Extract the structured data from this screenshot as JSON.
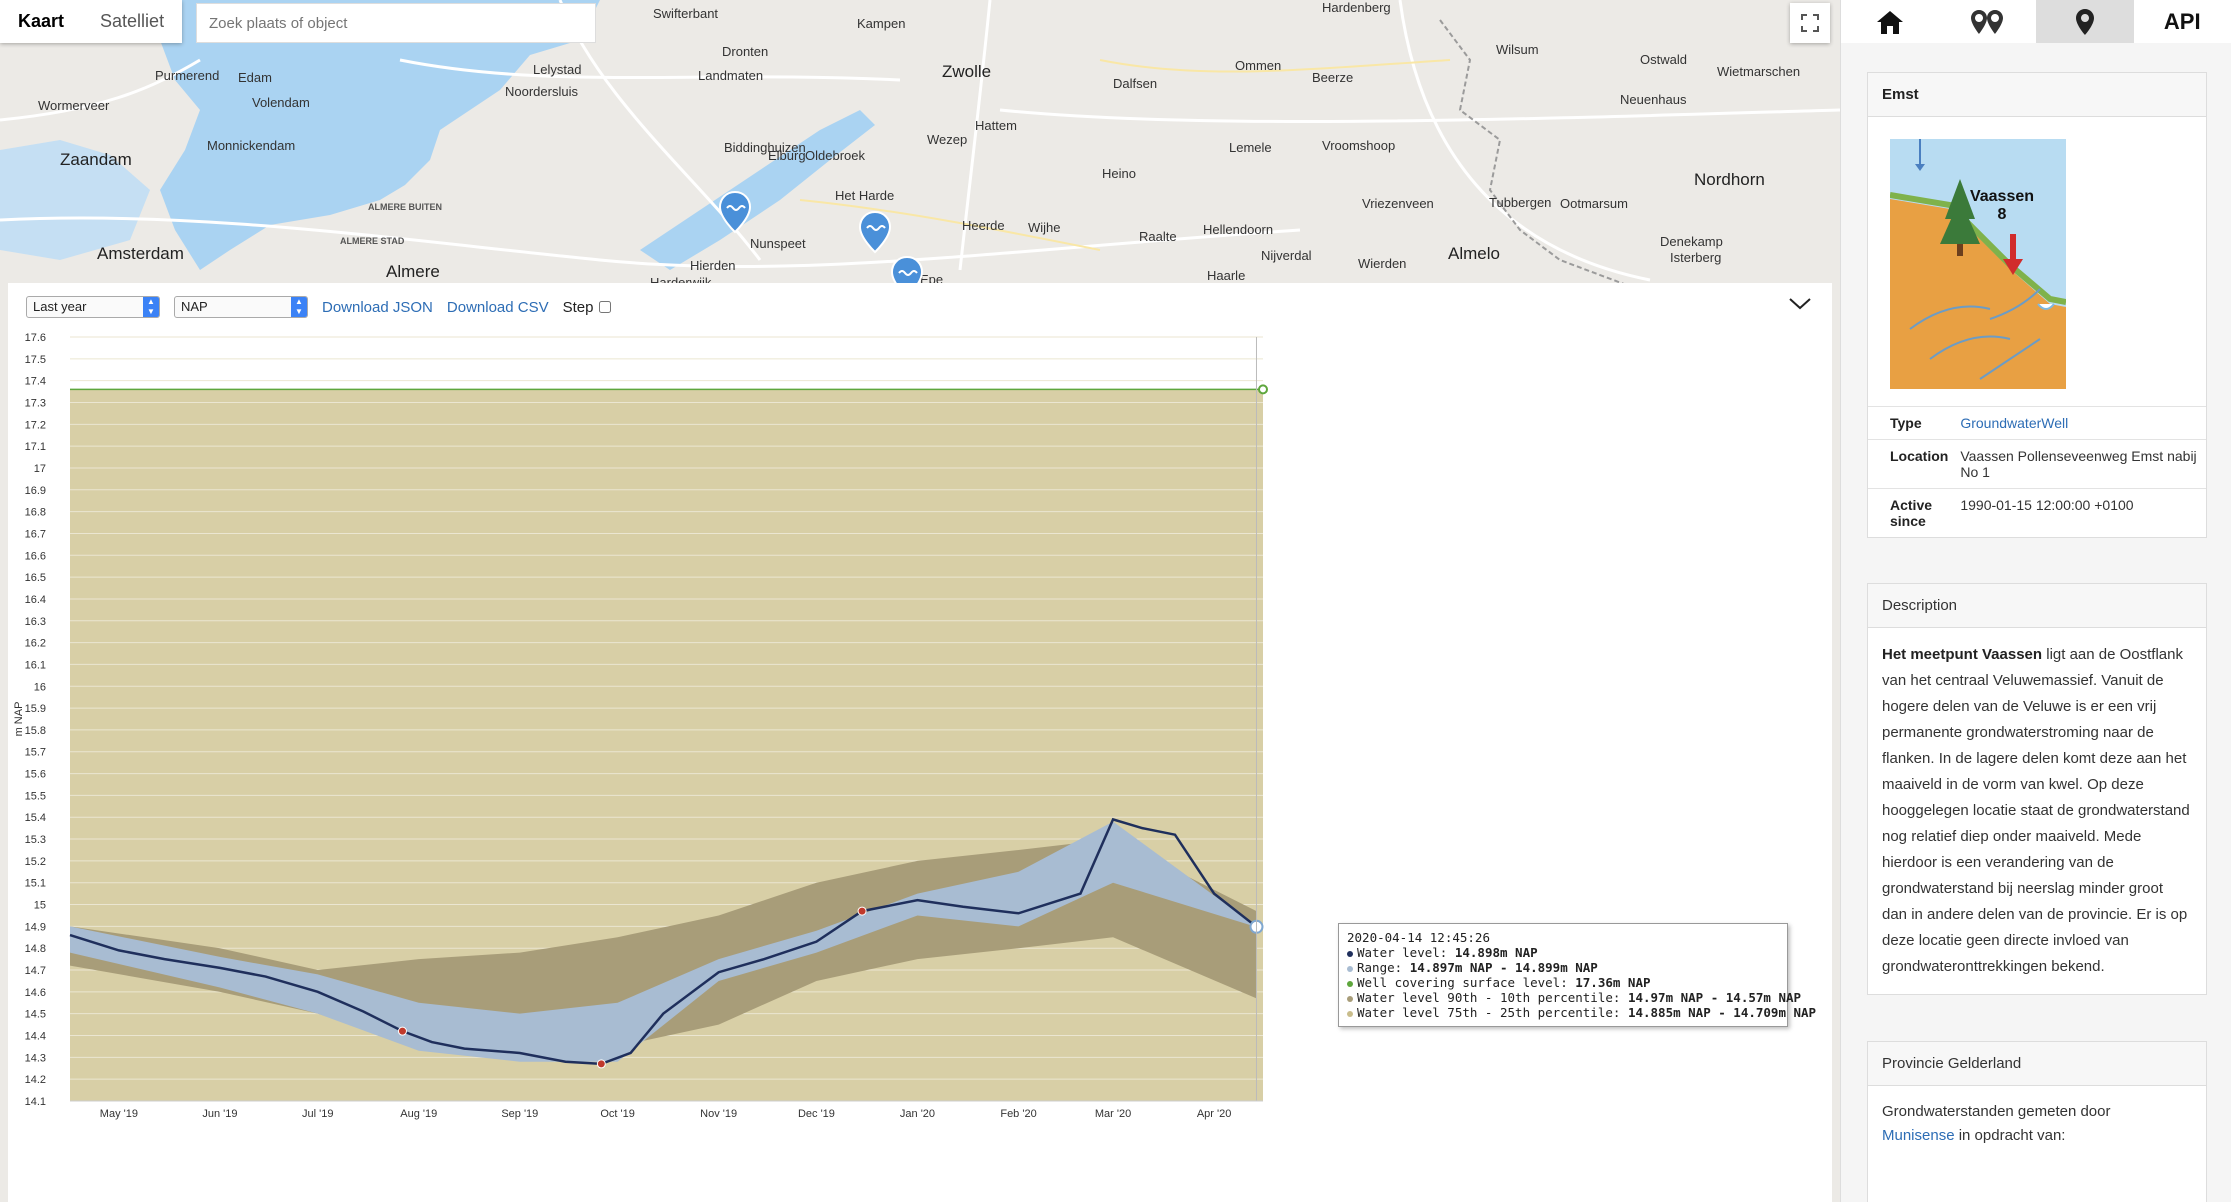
{
  "map": {
    "tabs": [
      {
        "label": "Kaart",
        "active": true
      },
      {
        "label": "Satelliet",
        "active": false
      }
    ],
    "search_placeholder": "Zoek plaats of object",
    "places": [
      {
        "name": "Swifterbant",
        "kind": "normal"
      },
      {
        "name": "Kampen",
        "kind": "normal"
      },
      {
        "name": "Hardenberg",
        "kind": "normal"
      },
      {
        "name": "Purmerend",
        "kind": "normal"
      },
      {
        "name": "Edam",
        "kind": "normal"
      },
      {
        "name": "Volendam",
        "kind": "normal"
      },
      {
        "name": "Lelystad",
        "kind": "normal"
      },
      {
        "name": "Noordersluis",
        "kind": "normal"
      },
      {
        "name": "Dronten",
        "kind": "normal"
      },
      {
        "name": "Landmaten",
        "kind": "normal"
      },
      {
        "name": "Zwolle",
        "kind": "big"
      },
      {
        "name": "Dalfsen",
        "kind": "normal"
      },
      {
        "name": "Ommen",
        "kind": "normal"
      },
      {
        "name": "Beerze",
        "kind": "normal"
      },
      {
        "name": "Wilsum",
        "kind": "normal"
      },
      {
        "name": "Ostwald",
        "kind": "normal"
      },
      {
        "name": "Wietmarschen",
        "kind": "normal"
      },
      {
        "name": "Wormerveer",
        "kind": "normal"
      },
      {
        "name": "Monnickendam",
        "kind": "normal"
      },
      {
        "name": "Neuenhaus",
        "kind": "normal"
      },
      {
        "name": "Zaandam",
        "kind": "big"
      },
      {
        "name": "Biddinghuizen",
        "kind": "normal"
      },
      {
        "name": "Elburg",
        "kind": "normal"
      },
      {
        "name": "Oldebroek",
        "kind": "normal"
      },
      {
        "name": "Wezep",
        "kind": "normal"
      },
      {
        "name": "Hattem",
        "kind": "normal"
      },
      {
        "name": "Lemele",
        "kind": "normal"
      },
      {
        "name": "Vroomshoop",
        "kind": "normal"
      },
      {
        "name": "Heino",
        "kind": "normal"
      },
      {
        "name": "Het Harde",
        "kind": "normal"
      },
      {
        "name": "Nordhorn",
        "kind": "big"
      },
      {
        "name": "ALMERE BUITEN",
        "kind": "small"
      },
      {
        "name": "Amsterdam",
        "kind": "big"
      },
      {
        "name": "ALMERE STAD",
        "kind": "small"
      },
      {
        "name": "Nunspeet",
        "kind": "normal"
      },
      {
        "name": "Heerde",
        "kind": "normal"
      },
      {
        "name": "Wijhe",
        "kind": "normal"
      },
      {
        "name": "Hellendoorn",
        "kind": "normal"
      },
      {
        "name": "Vriezenveen",
        "kind": "normal"
      },
      {
        "name": "Tubbergen",
        "kind": "normal"
      },
      {
        "name": "Ootmarsum",
        "kind": "normal"
      },
      {
        "name": "Raalte",
        "kind": "normal"
      },
      {
        "name": "Nijverdal",
        "kind": "normal"
      },
      {
        "name": "Denekamp",
        "kind": "normal"
      },
      {
        "name": "Almelo",
        "kind": "big"
      },
      {
        "name": "Hierden",
        "kind": "normal"
      },
      {
        "name": "Wierden",
        "kind": "normal"
      },
      {
        "name": "Almere",
        "kind": "big"
      },
      {
        "name": "Harderwijk",
        "kind": "normal"
      },
      {
        "name": "Epe",
        "kind": "normal"
      },
      {
        "name": "Haarle",
        "kind": "normal"
      },
      {
        "name": "Isterberg",
        "kind": "normal"
      }
    ]
  },
  "chart_panel": {
    "period_select": "Last year",
    "unit_select": "NAP",
    "download_json": "Download JSON",
    "download_csv": "Download CSV",
    "step_label": "Step"
  },
  "chart_data": {
    "type": "line",
    "ylabel": "m NAP",
    "ylim": [
      14.1,
      17.6
    ],
    "yticks": [
      17.6,
      17.5,
      17.4,
      17.3,
      17.2,
      17.1,
      17,
      16.9,
      16.8,
      16.7,
      16.6,
      16.5,
      16.4,
      16.3,
      16.2,
      16.1,
      16,
      15.9,
      15.8,
      15.7,
      15.6,
      15.5,
      15.4,
      15.3,
      15.2,
      15.1,
      15,
      14.9,
      14.8,
      14.7,
      14.6,
      14.5,
      14.4,
      14.3,
      14.2,
      14.1
    ],
    "xticks": [
      "May '19",
      "Jun '19",
      "Jul '19",
      "Aug '19",
      "Sep '19",
      "Oct '19",
      "Nov '19",
      "Dec '19",
      "Jan '20",
      "Feb '20",
      "Mar '20",
      "Apr '20"
    ],
    "xlim": [
      "2019-04-16",
      "2020-04-16"
    ],
    "well_covering_surface_level": 17.36,
    "water_level": [
      [
        "2019-04-16",
        14.86
      ],
      [
        "2019-05-01",
        14.79
      ],
      [
        "2019-05-15",
        14.75
      ],
      [
        "2019-06-01",
        14.71
      ],
      [
        "2019-06-15",
        14.67
      ],
      [
        "2019-07-01",
        14.6
      ],
      [
        "2019-07-15",
        14.51
      ],
      [
        "2019-07-27",
        14.42
      ],
      [
        "2019-08-05",
        14.37
      ],
      [
        "2019-08-15",
        14.34
      ],
      [
        "2019-09-01",
        14.32
      ],
      [
        "2019-09-15",
        14.28
      ],
      [
        "2019-09-26",
        14.27
      ],
      [
        "2019-10-05",
        14.32
      ],
      [
        "2019-10-15",
        14.5
      ],
      [
        "2019-11-01",
        14.69
      ],
      [
        "2019-11-15",
        14.75
      ],
      [
        "2019-12-01",
        14.83
      ],
      [
        "2019-12-15",
        14.97
      ],
      [
        "2020-01-01",
        15.02
      ],
      [
        "2020-01-15",
        14.99
      ],
      [
        "2020-02-01",
        14.96
      ],
      [
        "2020-02-20",
        15.05
      ],
      [
        "2020-03-01",
        15.39
      ],
      [
        "2020-03-10",
        15.35
      ],
      [
        "2020-03-20",
        15.32
      ],
      [
        "2020-04-01",
        15.05
      ],
      [
        "2020-04-14",
        14.898
      ]
    ],
    "range_band": [
      [
        "2019-04-16",
        14.9,
        14.78
      ],
      [
        "2019-06-01",
        14.76,
        14.62
      ],
      [
        "2019-07-01",
        14.68,
        14.5
      ],
      [
        "2019-08-01",
        14.55,
        14.33
      ],
      [
        "2019-09-01",
        14.5,
        14.28
      ],
      [
        "2019-10-01",
        14.55,
        14.28
      ],
      [
        "2019-11-01",
        14.75,
        14.65
      ],
      [
        "2019-12-01",
        14.88,
        14.78
      ],
      [
        "2020-01-01",
        15.05,
        14.95
      ],
      [
        "2020-02-01",
        15.15,
        14.9
      ],
      [
        "2020-03-01",
        15.38,
        15.1
      ],
      [
        "2020-04-14",
        14.899,
        14.897
      ]
    ],
    "percentile_band": [
      [
        "2019-04-16",
        14.9,
        14.72
      ],
      [
        "2019-06-01",
        14.8,
        14.6
      ],
      [
        "2019-07-01",
        14.7,
        14.5
      ],
      [
        "2019-08-01",
        14.75,
        14.35
      ],
      [
        "2019-09-01",
        14.78,
        14.32
      ],
      [
        "2019-10-01",
        14.85,
        14.35
      ],
      [
        "2019-11-01",
        14.95,
        14.45
      ],
      [
        "2019-12-01",
        15.1,
        14.65
      ],
      [
        "2020-01-01",
        15.2,
        14.75
      ],
      [
        "2020-02-01",
        15.25,
        14.8
      ],
      [
        "2020-03-01",
        15.3,
        14.85
      ],
      [
        "2020-04-14",
        14.97,
        14.57
      ]
    ],
    "series_colors": {
      "water_level": "#1f2f5c",
      "range": "#a8bcd2",
      "percentile": "#a89d79",
      "background": "#d8cfa6",
      "surface": "#5ea63c",
      "marker": "#c0392b"
    },
    "tooltip": {
      "date": "2020-04-14 12:45:26",
      "rows": [
        {
          "label": "Water level:",
          "value": "14.898m NAP",
          "color": "#1f2f5c"
        },
        {
          "label": "Range:",
          "value": "14.897m NAP - 14.899m NAP",
          "color": "#a8bcd2"
        },
        {
          "label": "Well covering surface level:",
          "value": "17.36m NAP",
          "color": "#5ea63c"
        },
        {
          "label": "Water level 90th - 10th percentile:",
          "value": "14.97m NAP - 14.57m NAP",
          "color": "#a89d79"
        },
        {
          "label": "Water level 75th - 25th percentile:",
          "value": "14.885m NAP - 14.709m NAP",
          "color": "#c9bd8c"
        }
      ]
    }
  },
  "sidebar": {
    "tabs": [
      {
        "icon": "home-icon"
      },
      {
        "icon": "pins-icon"
      },
      {
        "icon": "pin-icon",
        "active": true
      },
      {
        "label": "API"
      }
    ],
    "location_card": {
      "title": "Emst",
      "image_label_1": "Vaassen",
      "image_label_2": "8",
      "type_key": "Type",
      "type_value": "GroundwaterWell",
      "location_key": "Location",
      "location_value": "Vaassen Pollenseveenweg Emst nabij No 1",
      "active_key": "Active since",
      "active_value": "1990-01-15 12:00:00 +0100"
    },
    "description_card": {
      "title": "Description",
      "lead": "Het meetpunt Vaassen",
      "body": " ligt aan de Oostflank van het centraal Veluwemassief. Vanuit de hogere delen van de Veluwe is er een vrij permanente grondwaterstroming naar de flanken. In de lagere delen komt deze aan het maaiveld in de vorm van kwel. Op deze hooggelegen locatie staat de grondwaterstand nog relatief diep onder maaiveld. Mede hierdoor is een verandering van de grondwaterstand bij neerslag minder groot dan in andere delen van de provincie. Er is op deze locatie geen directe invloed van grondwateronttrekkingen bekend."
    },
    "province_card": {
      "title": "Provincie Gelderland",
      "text1": "Grondwaterstanden gemeten door",
      "link": "Munisense",
      "text2": " in opdracht van:"
    }
  }
}
